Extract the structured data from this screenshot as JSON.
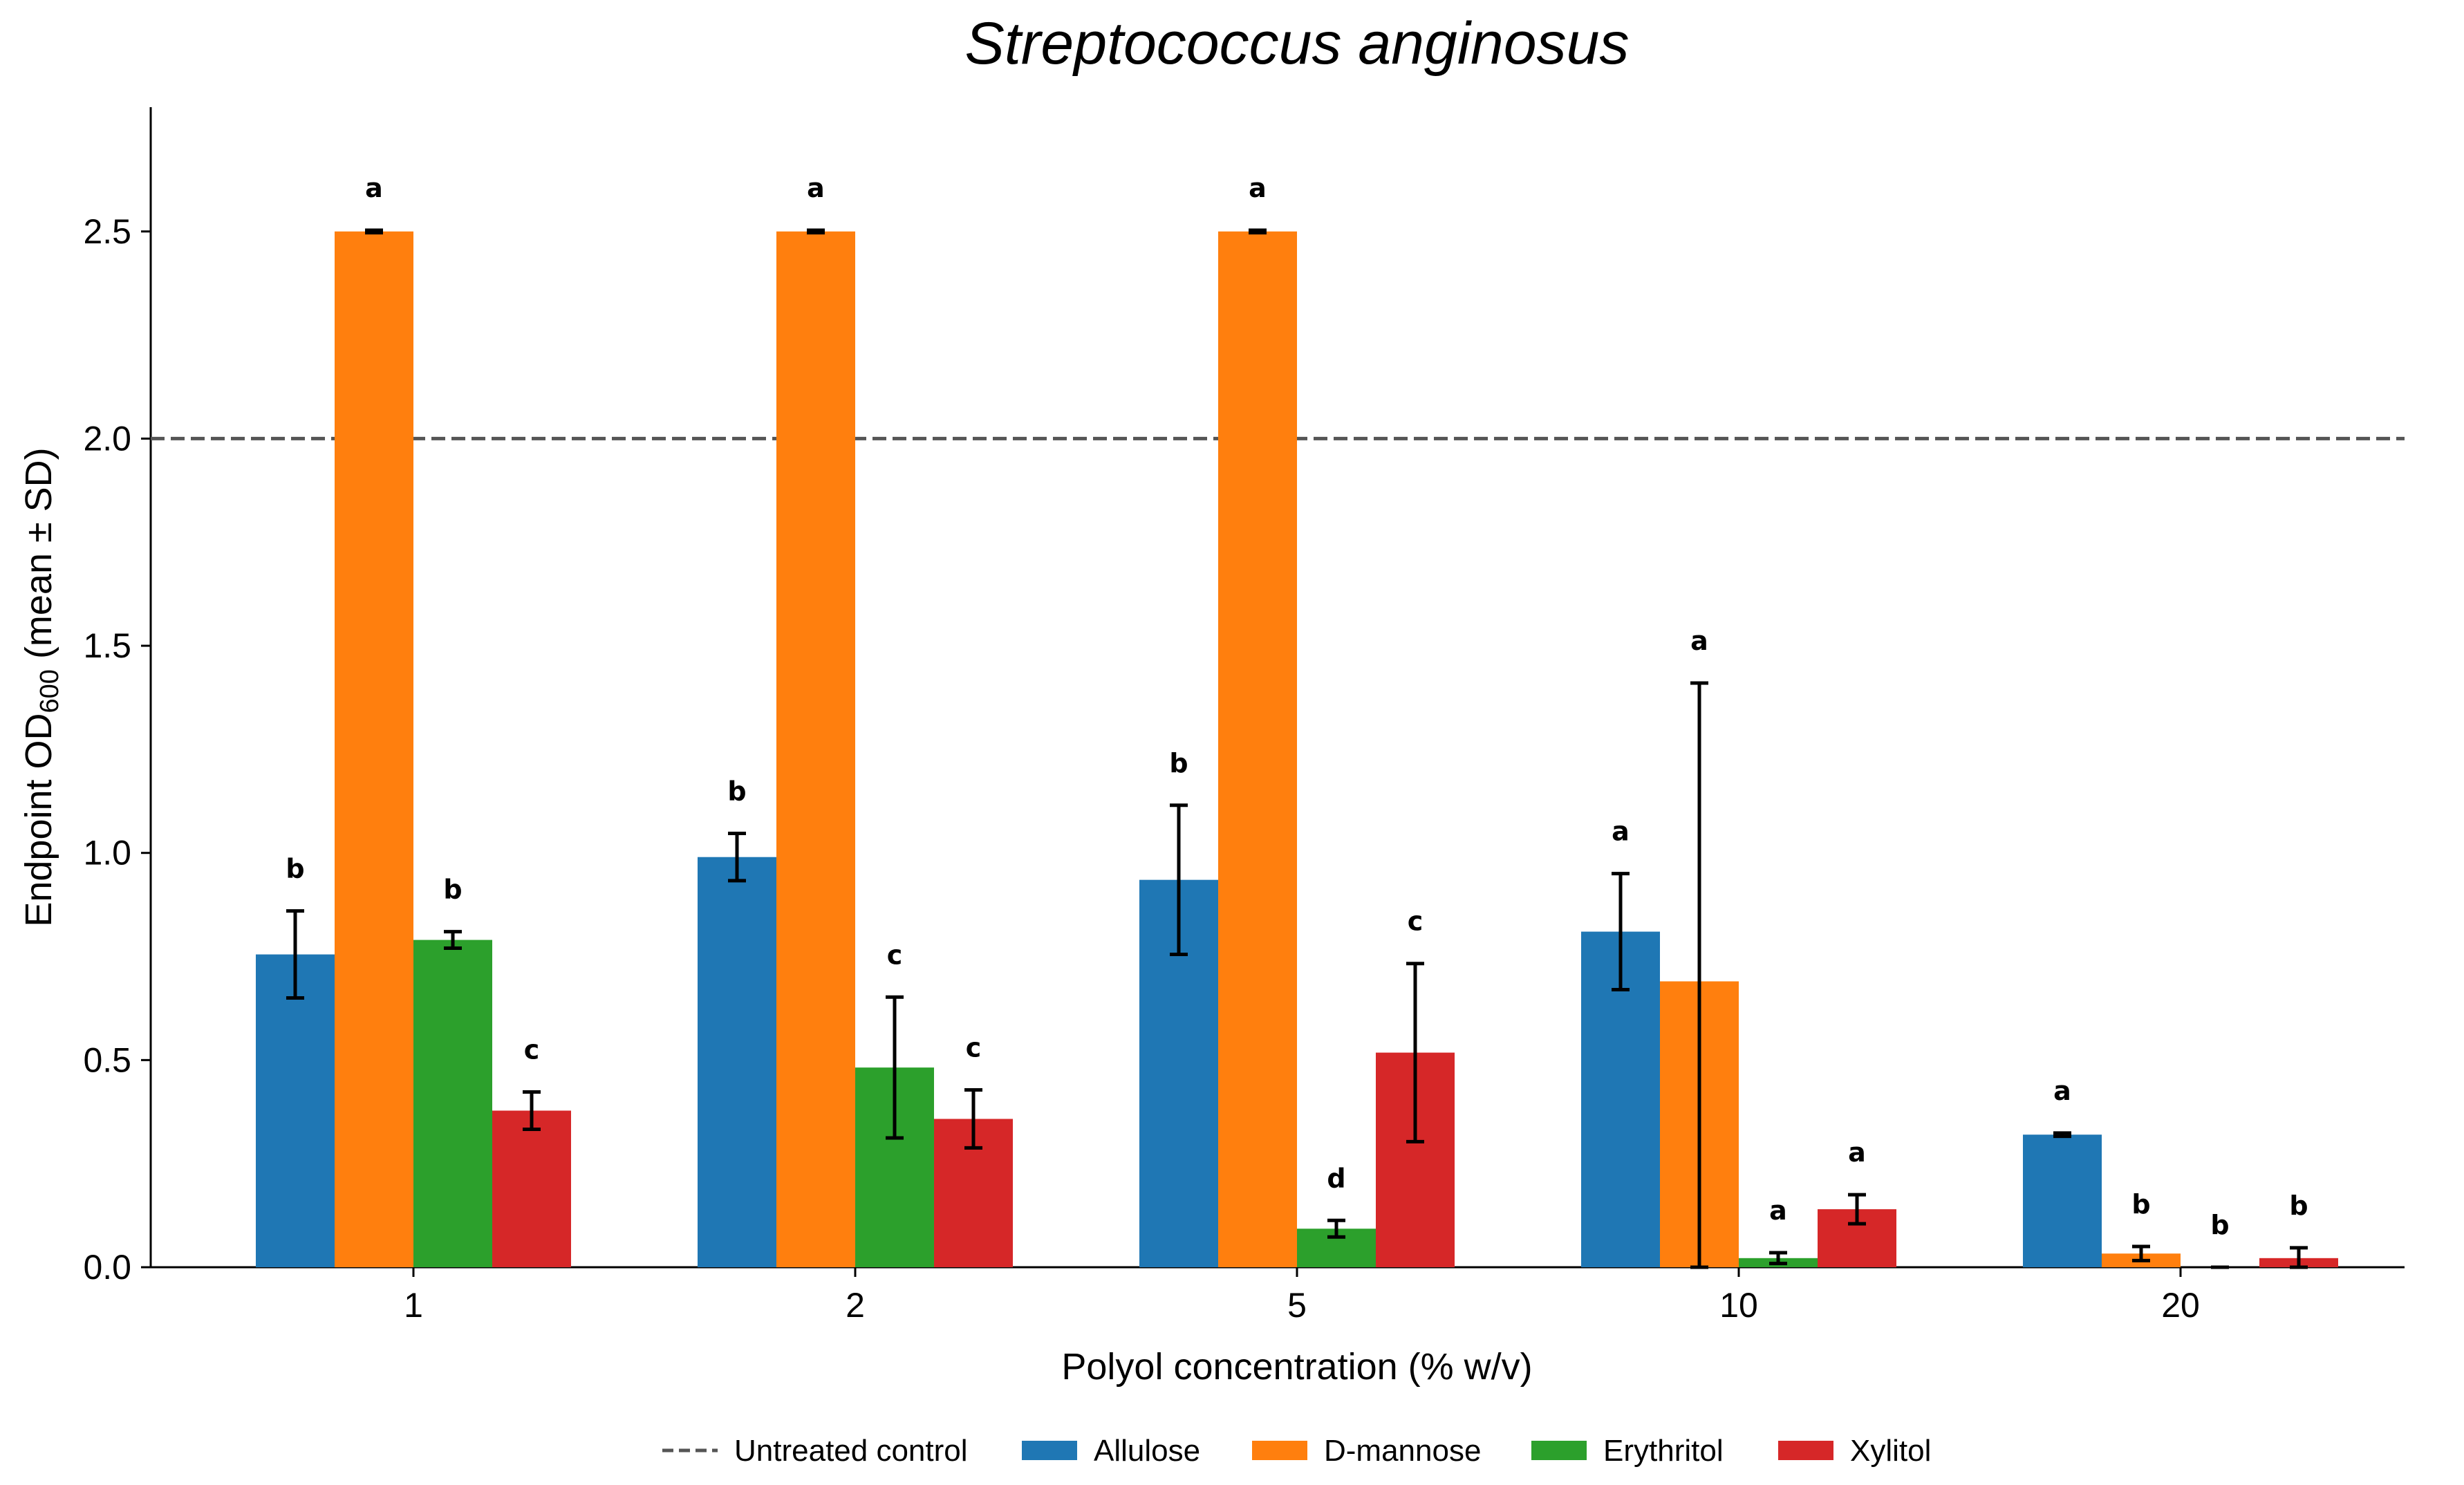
{
  "chart_data": {
    "type": "bar",
    "title": "Streptococcus anginosus",
    "xlabel": "Polyol concentration (% w/v)",
    "ylabel_main": "Endpoint OD",
    "ylabel_sub": "600",
    "ylabel_tail": " (mean ± SD)",
    "categories": [
      "1",
      "2",
      "5",
      "10",
      "20"
    ],
    "ylim": [
      0,
      2.8
    ],
    "yticks": [
      "0.0",
      "0.5",
      "1.0",
      "1.5",
      "2.0",
      "2.5"
    ],
    "grid": false,
    "legend_position": "bottom",
    "reference_line": {
      "name": "Untreated control",
      "value": 2.0,
      "color": "#555555"
    },
    "series": [
      {
        "name": "Allulose",
        "color": "#1f77b4",
        "values": [
          0.755,
          0.99,
          0.935,
          0.81,
          0.32
        ],
        "errors": [
          0.105,
          0.057,
          0.18,
          0.14,
          0.004
        ],
        "significance": [
          "b",
          "b",
          "b",
          "a",
          "a"
        ]
      },
      {
        "name": "D-mannose",
        "color": "#ff7f0e",
        "values": [
          2.5,
          2.5,
          2.5,
          0.69,
          0.033
        ],
        "errors": [
          0.003,
          0.003,
          0.003,
          0.72,
          0.017
        ],
        "significance": [
          "a",
          "a",
          "a",
          "a",
          "b"
        ]
      },
      {
        "name": "Erythritol",
        "color": "#2ca02c",
        "values": [
          0.79,
          0.482,
          0.093,
          0.022,
          0.0
        ],
        "errors": [
          0.02,
          0.17,
          0.02,
          0.013,
          0.0
        ],
        "significance": [
          "b",
          "c",
          "d",
          "a",
          "b"
        ]
      },
      {
        "name": "Xylitol",
        "color": "#d62728",
        "values": [
          0.378,
          0.358,
          0.518,
          0.14,
          0.022
        ],
        "errors": [
          0.045,
          0.07,
          0.215,
          0.035,
          0.025
        ],
        "significance": [
          "c",
          "c",
          "c",
          "a",
          "b"
        ]
      }
    ]
  }
}
